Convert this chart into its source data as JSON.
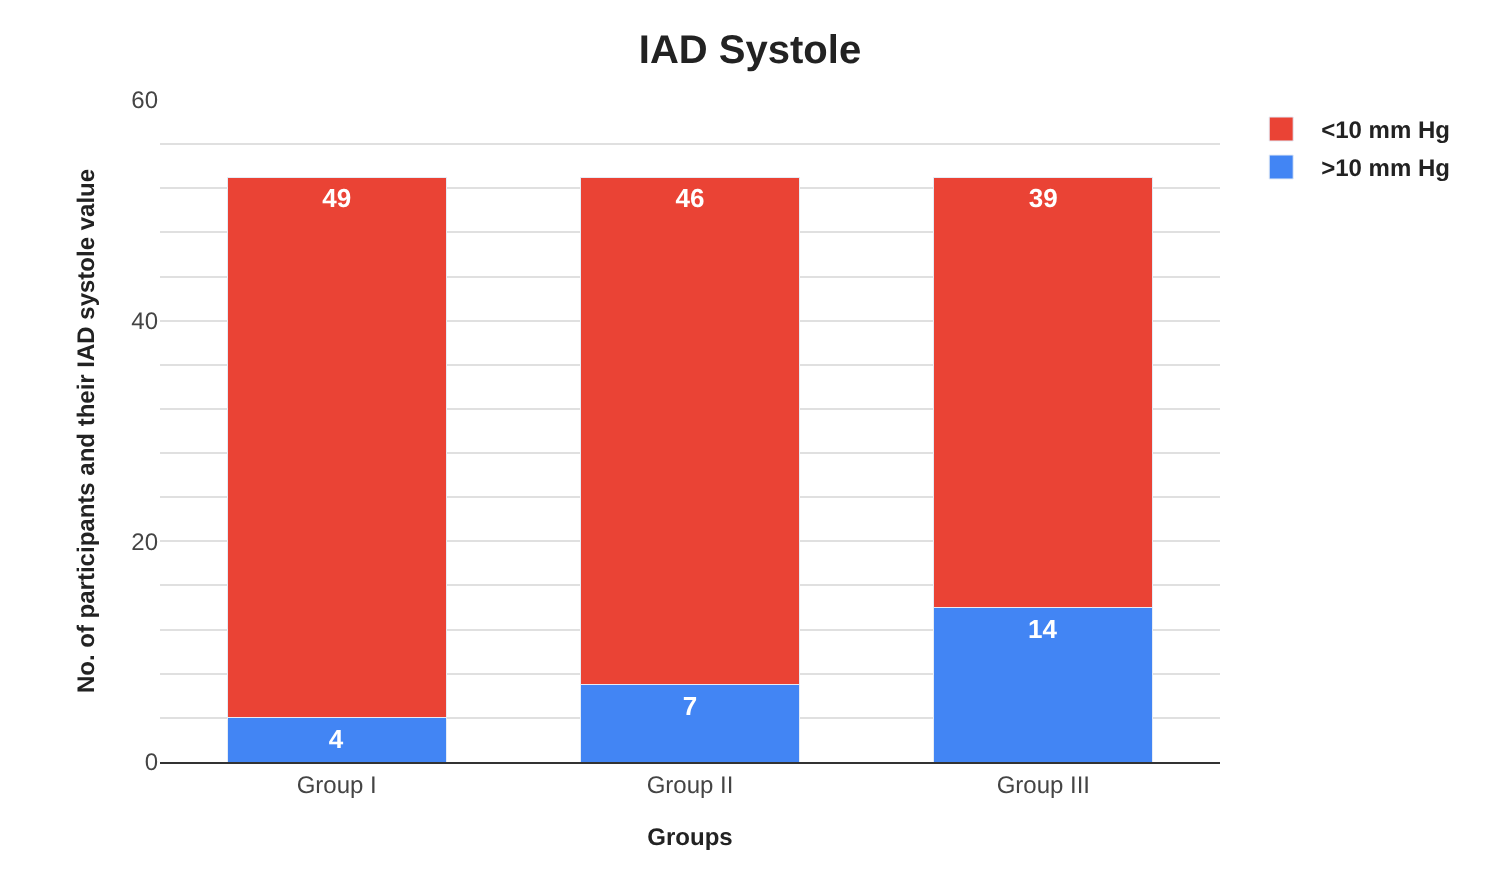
{
  "chart_data": {
    "type": "bar",
    "title": "IAD Systole",
    "xlabel": "Groups",
    "ylabel": "No. of participants and their IAD systole value",
    "categories": [
      "Group I",
      "Group II",
      "Group III"
    ],
    "series": [
      {
        "name": ">10 mm Hg",
        "color": "#4285f4",
        "values": [
          4,
          7,
          14
        ]
      },
      {
        "name": "<10 mm Hg",
        "color": "#ea4335",
        "values": [
          49,
          46,
          39
        ]
      }
    ],
    "stacked": true,
    "data_labels": true,
    "ylim": [
      0,
      60
    ],
    "yticks": [
      0,
      {
        "value": 4,
        "label": null
      },
      {
        "value": 8,
        "label": null
      },
      {
        "value": 12,
        "label": null
      },
      {
        "value": 16,
        "label": null
      },
      20,
      {
        "value": 24,
        "label": null
      },
      {
        "value": 28,
        "label": null
      },
      {
        "value": 32,
        "label": null
      },
      {
        "value": 36,
        "label": null
      },
      40,
      {
        "value": 44,
        "label": null
      },
      {
        "value": 48,
        "label": null
      },
      {
        "value": 52,
        "label": null
      },
      {
        "value": 56,
        "label": null
      },
      60
    ],
    "grid": "y",
    "legend": "top right"
  }
}
